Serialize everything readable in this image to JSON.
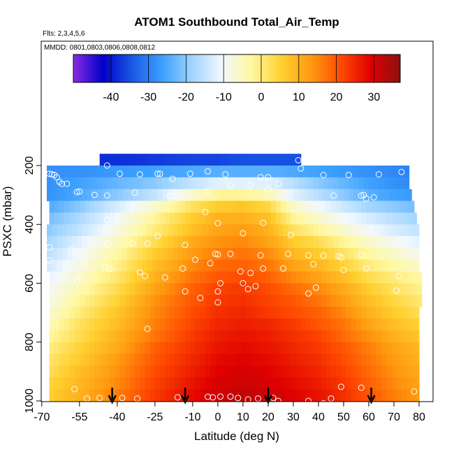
{
  "chart_data": {
    "type": "heatmap",
    "title": "ATOM1 Southbound Total_Air_Temp",
    "notes": [
      "Flts: 2,3,4,5,6",
      "MMDD: 0801,0803,0806,0808,0812"
    ],
    "xlabel": "Latitude (deg N)",
    "ylabel": "PSXC (mbar)",
    "xlim": [
      -70,
      85
    ],
    "ylim": [
      1000,
      0
    ],
    "x_ticks": [
      "-70",
      "-55",
      "-40",
      "-25",
      "-10",
      "0",
      "10",
      "20",
      "30",
      "40",
      "50",
      "60",
      "70",
      "80"
    ],
    "x_tick_values": [
      -70,
      -55,
      -40,
      -25,
      -10,
      0,
      10,
      20,
      30,
      40,
      50,
      60,
      70,
      80
    ],
    "y_ticks": [
      "200",
      "400",
      "600",
      "800",
      "1000"
    ],
    "y_tick_values": [
      200,
      400,
      600,
      800,
      1000
    ],
    "colorbar": {
      "range": [
        -50,
        37
      ],
      "ticks": [
        "-40",
        "-30",
        "-20",
        "-10",
        "0",
        "10",
        "20",
        "30"
      ],
      "tick_values": [
        -40,
        -30,
        -20,
        -10,
        0,
        10,
        20,
        30
      ],
      "colors": [
        "#8a2be2",
        "#0000c8",
        "#1a5ae6",
        "#3ca0ff",
        "#a0d4ff",
        "#f2f8ff",
        "#fff8a0",
        "#ffd030",
        "#ff9a10",
        "#ff4a00",
        "#e00000",
        "#8c1010"
      ]
    },
    "pressure_levels": [
      180,
      220,
      260,
      300,
      340,
      380,
      420,
      460,
      500,
      540,
      580,
      620,
      660,
      700,
      740,
      780,
      820,
      860,
      900,
      940,
      980
    ],
    "level_ranges": [
      [
        -47,
        33
      ],
      [
        -68,
        76
      ],
      [
        -68,
        76
      ],
      [
        -68,
        77
      ],
      [
        -67,
        78
      ],
      [
        -67,
        79
      ],
      [
        -68,
        80
      ],
      [
        -68,
        80
      ],
      [
        -68,
        80
      ],
      [
        -68,
        80
      ],
      [
        -67,
        81
      ],
      [
        -67,
        81
      ],
      [
        -67,
        81
      ],
      [
        -67,
        80
      ],
      [
        -67,
        80
      ],
      [
        -67,
        80
      ],
      [
        -67,
        80
      ],
      [
        -67,
        80
      ],
      [
        -67,
        80
      ],
      [
        -67,
        80
      ],
      [
        -67,
        80
      ]
    ],
    "temperature_by_level_at_lat": {
      "latitudes": [
        -68,
        -55,
        -40,
        -25,
        -10,
        0,
        10,
        20,
        30,
        40,
        50,
        60,
        70,
        80
      ],
      "values": [
        [
          -38,
          -38,
          -38,
          -37,
          -36,
          -36,
          -35,
          -35,
          -35,
          -35,
          -35,
          -35,
          -35,
          -35
        ],
        [
          -28,
          -28,
          -27,
          -26,
          -25,
          -24,
          -24,
          -24,
          -25,
          -26,
          -27,
          -28,
          -29,
          -30
        ],
        [
          -28,
          -26,
          -23,
          -20,
          -15,
          -12,
          -12,
          -12,
          -16,
          -20,
          -23,
          -26,
          -28,
          -29
        ],
        [
          -28,
          -25,
          -20,
          -15,
          -6,
          -2,
          -2,
          -4,
          -12,
          -16,
          -20,
          -24,
          -26,
          -27
        ],
        [
          -25,
          -20,
          -13,
          -6,
          2,
          6,
          7,
          4,
          -6,
          -10,
          -14,
          -18,
          -20,
          -22
        ],
        [
          -22,
          -17,
          -10,
          -2,
          6,
          10,
          10,
          8,
          -2,
          -6,
          -10,
          -13,
          -16,
          -18
        ],
        [
          -20,
          -15,
          -8,
          0,
          8,
          12,
          13,
          10,
          2,
          -2,
          -6,
          -10,
          -13,
          -15
        ],
        [
          -18,
          -12,
          -5,
          3,
          11,
          14,
          15,
          12,
          6,
          3,
          -2,
          -6,
          -9,
          -12
        ],
        [
          -16,
          -10,
          -3,
          6,
          13,
          16,
          17,
          15,
          9,
          6,
          2,
          -3,
          -6,
          -9
        ],
        [
          -14,
          -8,
          -1,
          8,
          15,
          18,
          19,
          17,
          12,
          9,
          5,
          0,
          -3,
          -6
        ],
        [
          -12,
          -6,
          1,
          10,
          17,
          20,
          21,
          19,
          15,
          12,
          8,
          3,
          0,
          -3
        ],
        [
          -10,
          -4,
          3,
          12,
          19,
          22,
          23,
          21,
          18,
          15,
          11,
          6,
          2,
          -1
        ],
        [
          -9,
          -2,
          5,
          14,
          20,
          23,
          24,
          22,
          20,
          17,
          13,
          8,
          4,
          1
        ],
        [
          -7,
          0,
          7,
          15,
          21,
          24,
          25,
          23,
          21,
          19,
          15,
          10,
          6,
          3
        ],
        [
          -5,
          2,
          8,
          16,
          22,
          25,
          26,
          25,
          23,
          20,
          17,
          12,
          8,
          5
        ],
        [
          -3,
          3,
          10,
          17,
          23,
          26,
          27,
          26,
          24,
          22,
          18,
          14,
          10,
          7
        ],
        [
          -1,
          5,
          11,
          19,
          24,
          27,
          28,
          27,
          25,
          23,
          20,
          16,
          12,
          9
        ],
        [
          1,
          6,
          13,
          20,
          25,
          28,
          29,
          28,
          26,
          24,
          21,
          17,
          13,
          10
        ],
        [
          2,
          8,
          14,
          21,
          26,
          29,
          30,
          29,
          27,
          25,
          22,
          18,
          14,
          11
        ],
        [
          4,
          9,
          15,
          22,
          27,
          30,
          31,
          30,
          28,
          26,
          23,
          19,
          15,
          12
        ],
        [
          5,
          10,
          16,
          23,
          28,
          31,
          32,
          31,
          29,
          27,
          24,
          20,
          16,
          13
        ]
      ]
    },
    "observations": [
      [
        -44,
        200
      ],
      [
        32,
        182
      ],
      [
        33,
        210
      ],
      [
        -67,
        228
      ],
      [
        -66,
        230
      ],
      [
        -65,
        232
      ],
      [
        -64,
        240
      ],
      [
        -63,
        255
      ],
      [
        -62,
        262
      ],
      [
        -60,
        262
      ],
      [
        -39,
        228
      ],
      [
        -31,
        230
      ],
      [
        -24,
        228
      ],
      [
        -23,
        228
      ],
      [
        -18,
        245
      ],
      [
        -11,
        228
      ],
      [
        -4,
        220
      ],
      [
        3,
        230
      ],
      [
        17,
        240
      ],
      [
        20,
        240
      ],
      [
        24,
        262
      ],
      [
        42,
        232
      ],
      [
        52,
        232
      ],
      [
        64,
        230
      ],
      [
        73,
        222
      ],
      [
        -56,
        290
      ],
      [
        -55,
        288
      ],
      [
        -49,
        300
      ],
      [
        -44,
        302
      ],
      [
        -33,
        292
      ],
      [
        -19,
        303
      ],
      [
        -4,
        288
      ],
      [
        5,
        268
      ],
      [
        13,
        267
      ],
      [
        20,
        282
      ],
      [
        46,
        302
      ],
      [
        57,
        302
      ],
      [
        58,
        300
      ],
      [
        59,
        312
      ],
      [
        62,
        308
      ],
      [
        -44,
        385
      ],
      [
        -5,
        358
      ],
      [
        0,
        396
      ],
      [
        10,
        430
      ],
      [
        18,
        395
      ],
      [
        29,
        436
      ],
      [
        -24,
        440
      ],
      [
        -67,
        478
      ],
      [
        -58,
        488
      ],
      [
        -44,
        465
      ],
      [
        -34,
        465
      ],
      [
        -28,
        465
      ],
      [
        -13,
        470
      ],
      [
        -1,
        500
      ],
      [
        0,
        502
      ],
      [
        5,
        500
      ],
      [
        17,
        505
      ],
      [
        28,
        500
      ],
      [
        36,
        505
      ],
      [
        42,
        506
      ],
      [
        48,
        508
      ],
      [
        57,
        504
      ],
      [
        -67,
        522
      ],
      [
        -53,
        534
      ],
      [
        -45,
        544
      ],
      [
        -43,
        552
      ],
      [
        -31,
        563
      ],
      [
        -29,
        575
      ],
      [
        -14,
        550
      ],
      [
        -9,
        520
      ],
      [
        -3,
        532
      ],
      [
        9,
        560
      ],
      [
        13,
        565
      ],
      [
        18,
        550
      ],
      [
        26,
        550
      ],
      [
        38,
        535
      ],
      [
        49,
        512
      ],
      [
        50,
        555
      ],
      [
        59,
        550
      ],
      [
        72,
        576
      ],
      [
        -56,
        595
      ],
      [
        -55,
        575
      ],
      [
        -21,
        580
      ],
      [
        1,
        600
      ],
      [
        10,
        600
      ],
      [
        12,
        620
      ],
      [
        15,
        610
      ],
      [
        39,
        615
      ],
      [
        -13,
        628
      ],
      [
        -7,
        650
      ],
      [
        0,
        628
      ],
      [
        0,
        665
      ],
      [
        36,
        635
      ],
      [
        71,
        625
      ],
      [
        -28,
        755
      ],
      [
        -57,
        960
      ],
      [
        -52,
        992
      ],
      [
        -47,
        990
      ],
      [
        -38,
        990
      ],
      [
        -32,
        992
      ],
      [
        -16,
        988
      ],
      [
        -4,
        986
      ],
      [
        -2,
        988
      ],
      [
        1,
        985
      ],
      [
        5,
        985
      ],
      [
        8,
        990
      ],
      [
        12,
        995
      ],
      [
        16,
        992
      ],
      [
        22,
        990
      ],
      [
        24,
        1000
      ],
      [
        36,
        1000
      ],
      [
        42,
        1008
      ],
      [
        45,
        992
      ],
      [
        49,
        952
      ],
      [
        57,
        955
      ],
      [
        78,
        968
      ]
    ],
    "arrows": [
      -42,
      -13,
      20,
      61
    ]
  }
}
